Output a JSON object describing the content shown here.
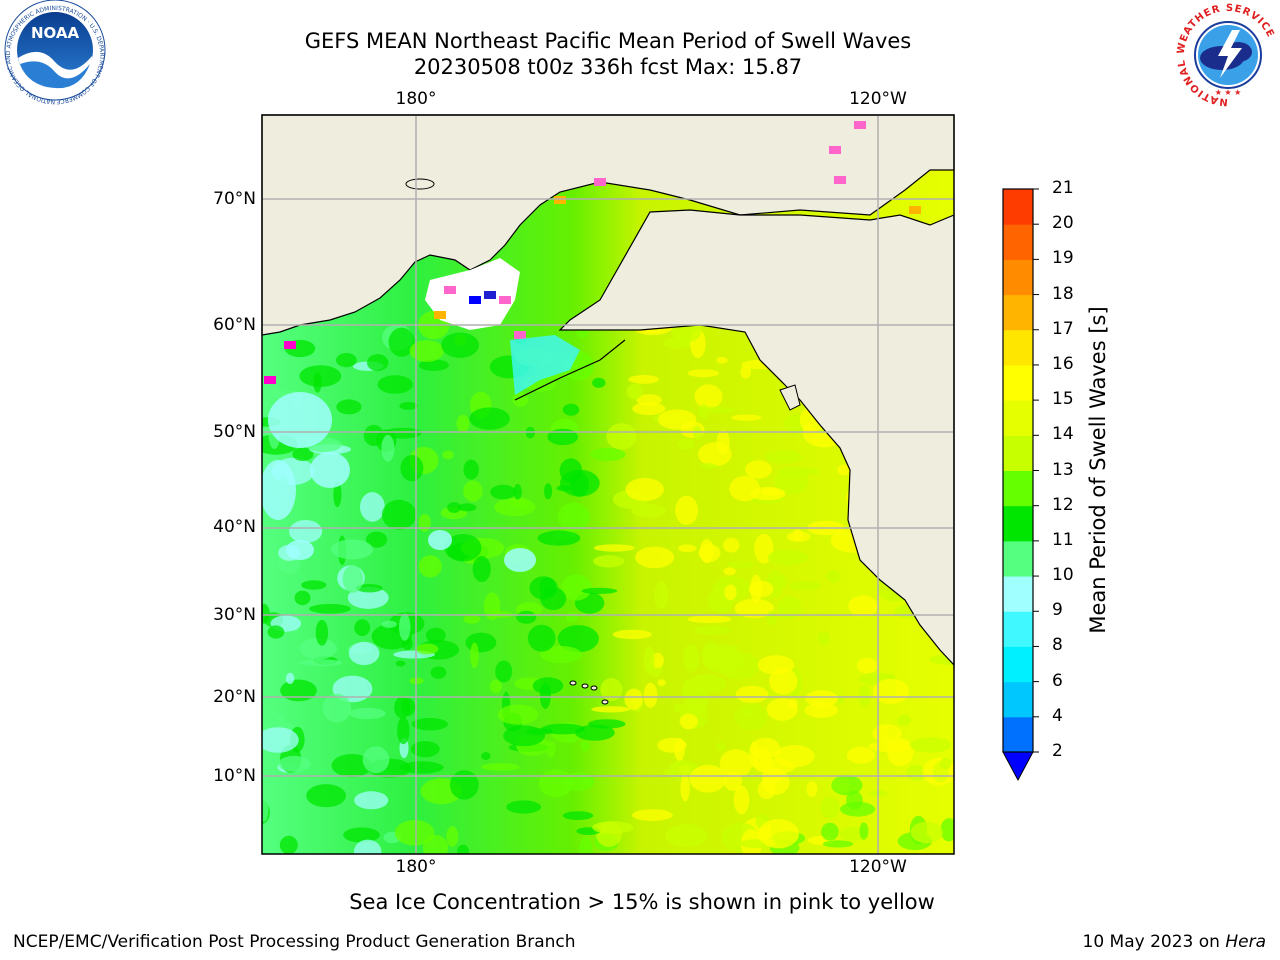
{
  "header": {
    "title_line1": "GEFS MEAN Northeast Pacific Mean Period of Swell Waves",
    "title_line2": "20230508 t00z 336h fcst   Max: 15.87"
  },
  "logos": {
    "noaa_label": "NOAA",
    "noaa_ring_text": "NATIONAL OCEANIC AND ATMOSPHERIC ADMINISTRATION · U.S. DEPARTMENT OF COMMERCE",
    "nws_ring_text": "NATIONAL WEATHER SERVICE"
  },
  "map": {
    "lat_labels": [
      "70°N",
      "60°N",
      "50°N",
      "40°N",
      "30°N",
      "20°N",
      "10°N"
    ],
    "lon_labels_top": [
      "180°",
      "120°W"
    ],
    "lon_labels_bottom": [
      "180°",
      "120°W"
    ],
    "land_color": "#efedde",
    "grid_color": "#b0b0b0"
  },
  "colorbar": {
    "title": "Mean Period of Swell Waves [s]",
    "ticks": [
      "2",
      "4",
      "6",
      "8",
      "9",
      "10",
      "11",
      "12",
      "13",
      "14",
      "15",
      "16",
      "17",
      "18",
      "19",
      "20",
      "21"
    ],
    "colors": [
      "#0070ff",
      "#00c8ff",
      "#00f0ff",
      "#40f8ff",
      "#a0ffff",
      "#55ff80",
      "#00e600",
      "#66ff00",
      "#c8ff00",
      "#e6ff00",
      "#ffff00",
      "#ffe600",
      "#ffb400",
      "#ff8c00",
      "#ff6400",
      "#ff3c00",
      "#ff0000"
    ],
    "under_color": "#0000ff"
  },
  "footer": {
    "note": "Sea Ice Concentration > 15% is shown in pink to yellow",
    "credit": "NCEP/EMC/Verification Post Processing Product Generation Branch",
    "date": "10 May 2023 on ",
    "machine": "Hera"
  }
}
